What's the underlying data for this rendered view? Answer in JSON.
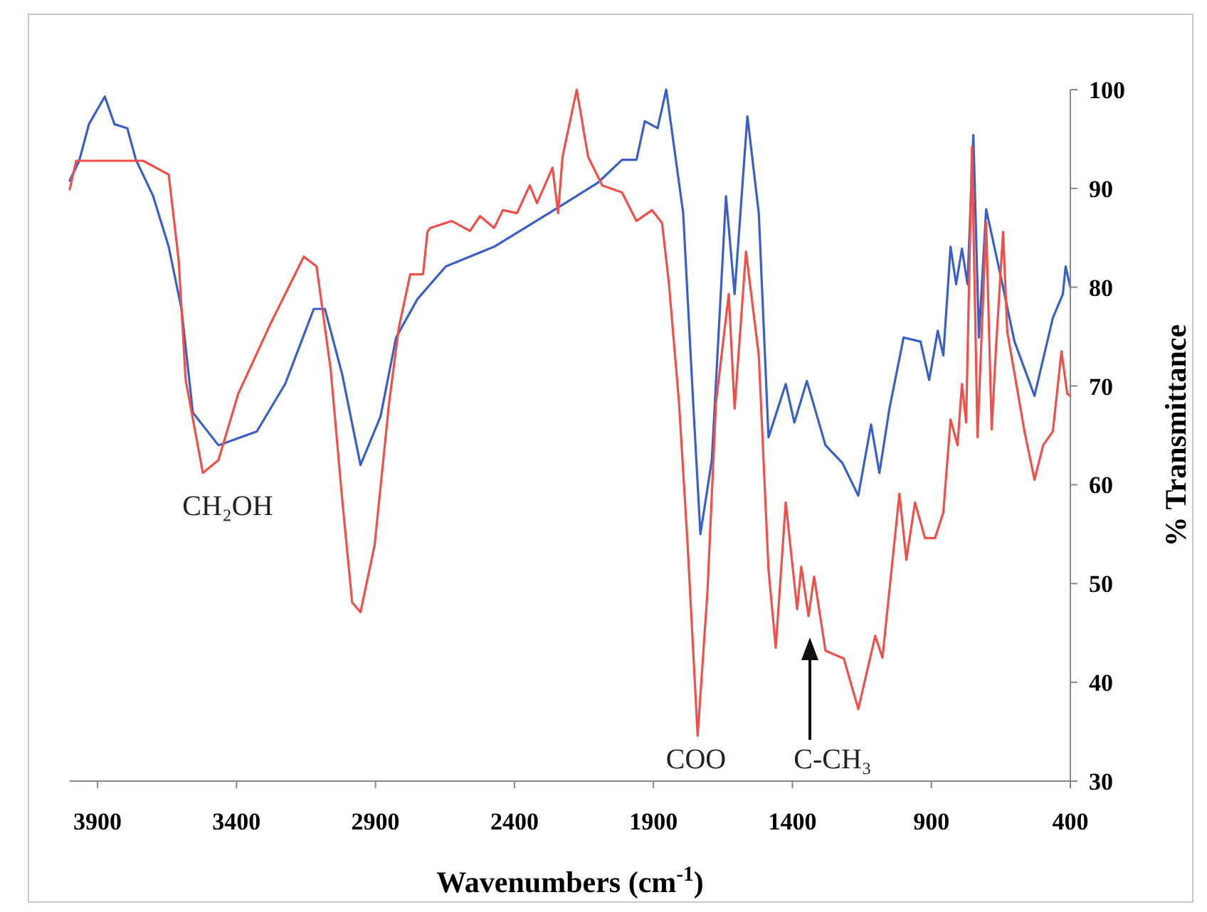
{
  "chart_data": {
    "type": "line",
    "xlabel": "Wavenumbers (cm$^{-1}$)",
    "ylabel": "% Transmittance",
    "xlim": [
      4000,
      400
    ],
    "xticks": [
      3900,
      3400,
      2900,
      2400,
      1900,
      1400,
      900,
      400
    ],
    "ylim": [
      30,
      100
    ],
    "yticks": [
      30,
      40,
      50,
      60,
      70,
      80,
      90,
      100
    ],
    "grid": false,
    "marker": "none",
    "line_style": "solid",
    "series": [
      {
        "color": "#3a5fc8",
        "x": [
          4000,
          3966,
          3931,
          3874,
          3839,
          3793,
          3762,
          3701,
          3644,
          3598,
          3557,
          3465,
          3327,
          3225,
          3122,
          3082,
          3020,
          2954,
          2882,
          2826,
          2749,
          2647,
          2473,
          2253,
          2099,
          2013,
          1961,
          1931,
          1885,
          1854,
          1793,
          1757,
          1731,
          1690,
          1639,
          1608,
          1562,
          1521,
          1486,
          1424,
          1393,
          1348,
          1281,
          1220,
          1163,
          1117,
          1087,
          1051,
          1000,
          939,
          908,
          877,
          857,
          831,
          811,
          790,
          770,
          749,
          729,
          703,
          652,
          601,
          529,
          463,
          427,
          417,
          400
        ],
        "values": [
          90.8,
          92.8,
          96.5,
          99.3,
          96.5,
          96.1,
          92.9,
          89.3,
          84.1,
          77.8,
          67.3,
          64.0,
          65.4,
          70.2,
          77.8,
          77.8,
          71.2,
          62.0,
          66.9,
          74.9,
          78.8,
          82.1,
          84.1,
          87.9,
          90.6,
          92.9,
          92.9,
          96.8,
          96.1,
          100,
          87.5,
          68.3,
          55.0,
          62.5,
          89.2,
          79.3,
          97.3,
          87.5,
          64.8,
          70.2,
          66.3,
          70.5,
          64.0,
          62.2,
          58.9,
          66.1,
          61.2,
          67.7,
          74.9,
          74.5,
          70.6,
          75.6,
          73.1,
          84.1,
          80.3,
          83.9,
          80.3,
          95.4,
          74.9,
          87.9,
          81.3,
          74.5,
          69.0,
          76.9,
          79.3,
          82.1,
          80.0
        ]
      },
      {
        "color": "#f0504a",
        "x": [
          4000,
          3977,
          3736,
          3644,
          3608,
          3583,
          3521,
          3465,
          3394,
          3276,
          3158,
          3112,
          3061,
          3020,
          2984,
          2954,
          2903,
          2851,
          2816,
          2775,
          2729,
          2713,
          2703,
          2626,
          2560,
          2524,
          2473,
          2442,
          2391,
          2345,
          2319,
          2263,
          2243,
          2227,
          2176,
          2135,
          2084,
          2013,
          1961,
          1905,
          1869,
          1844,
          1808,
          1777,
          1741,
          1706,
          1675,
          1629,
          1608,
          1567,
          1521,
          1486,
          1460,
          1424,
          1383,
          1368,
          1342,
          1322,
          1281,
          1215,
          1163,
          1102,
          1076,
          1015,
          990,
          959,
          923,
          887,
          857,
          831,
          806,
          790,
          775,
          754,
          734,
          703,
          683,
          667,
          642,
          627,
          565,
          529,
          498,
          463,
          432,
          411,
          400
        ],
        "values": [
          89.9,
          92.8,
          92.8,
          91.4,
          82.7,
          70.6,
          61.2,
          62.5,
          69.2,
          76.4,
          83.1,
          82.1,
          71.6,
          58.6,
          48.1,
          47.1,
          53.9,
          68.3,
          75.9,
          81.3,
          81.3,
          85.6,
          86.0,
          86.7,
          85.7,
          87.2,
          86.0,
          87.8,
          87.5,
          90.3,
          88.5,
          92.1,
          87.5,
          93.2,
          100,
          93.2,
          90.3,
          89.6,
          86.7,
          87.8,
          86.5,
          80.3,
          68.3,
          53.9,
          34.6,
          49.0,
          68.3,
          79.3,
          67.7,
          83.6,
          73.1,
          51.4,
          43.5,
          58.2,
          47.4,
          51.7,
          46.7,
          50.7,
          43.2,
          42.4,
          37.3,
          44.7,
          42.5,
          59.1,
          52.4,
          58.2,
          54.6,
          54.6,
          57.2,
          66.6,
          64.0,
          70.2,
          66.3,
          94.2,
          64.8,
          86.5,
          65.6,
          74.1,
          85.6,
          75.5,
          65.4,
          60.5,
          64.0,
          65.4,
          73.5,
          69.2,
          69.0
        ]
      }
    ],
    "annotations": [
      "CH₂OH",
      "COO",
      "C-CH₃"
    ]
  }
}
